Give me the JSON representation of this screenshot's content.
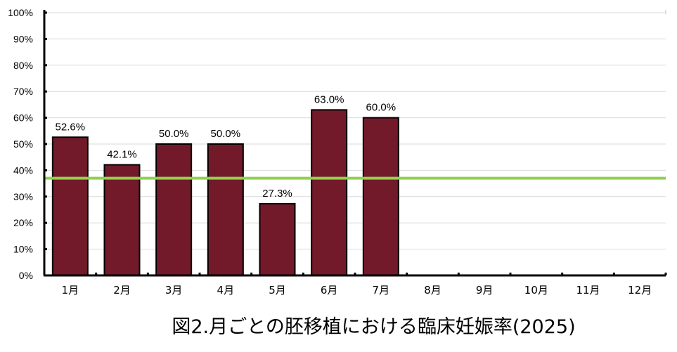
{
  "caption": "図2.月ごとの胚移植における臨床妊娠率(2025)",
  "chart_data": {
    "type": "bar",
    "title": "図2.月ごとの胚移植における臨床妊娠率(2025)",
    "categories": [
      "1月",
      "2月",
      "3月",
      "4月",
      "5月",
      "6月",
      "7月",
      "8月",
      "9月",
      "10月",
      "11月",
      "12月"
    ],
    "values": [
      52.6,
      42.1,
      50.0,
      50.0,
      27.3,
      63.0,
      60.0,
      null,
      null,
      null,
      null,
      null
    ],
    "data_labels": [
      "52.6%",
      "42.1%",
      "50.0%",
      "50.0%",
      "27.3%",
      "63.0%",
      "60.0%",
      "",
      "",
      "",
      "",
      ""
    ],
    "ylim": [
      0,
      100
    ],
    "yticks": [
      0,
      10,
      20,
      30,
      40,
      50,
      60,
      70,
      80,
      90,
      100
    ],
    "ytick_labels": [
      "0%",
      "10%",
      "20%",
      "30%",
      "40%",
      "50%",
      "60%",
      "70%",
      "80%",
      "90%",
      "100%"
    ],
    "reference_line": {
      "value": 37,
      "color": "#92d050"
    },
    "bar_color": "#721a29",
    "grid": true,
    "legend": "none"
  }
}
